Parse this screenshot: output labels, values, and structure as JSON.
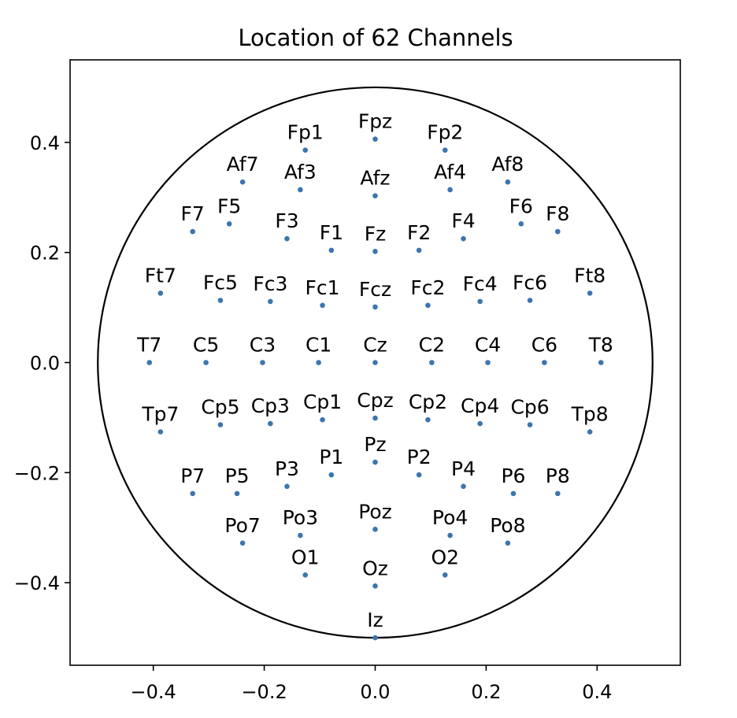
{
  "chart_data": {
    "type": "scatter",
    "title": "Location of 62 Channels",
    "xlim": [
      -0.55,
      0.55
    ],
    "ylim": [
      -0.55,
      0.55
    ],
    "xticks": [
      -0.4,
      -0.2,
      0.0,
      0.2,
      0.4
    ],
    "yticks": [
      -0.4,
      -0.2,
      0.0,
      0.2,
      0.4
    ],
    "xtick_labels": [
      "−0.4",
      "−0.2",
      "0.0",
      "0.2",
      "0.4"
    ],
    "ytick_labels": [
      "−0.4",
      "−0.2",
      "0.0",
      "0.2",
      "0.4"
    ],
    "grid": false,
    "head_circle": {
      "center": [
        0,
        0
      ],
      "radius": 0.5
    },
    "marker_color": "#3b75af",
    "points": [
      {
        "label": "Fp1",
        "x": -0.126,
        "y": 0.386
      },
      {
        "label": "Fpz",
        "x": 0.0,
        "y": 0.406
      },
      {
        "label": "Fp2",
        "x": 0.126,
        "y": 0.386
      },
      {
        "label": "Af7",
        "x": -0.239,
        "y": 0.328
      },
      {
        "label": "Af3",
        "x": -0.135,
        "y": 0.314
      },
      {
        "label": "Afz",
        "x": 0.0,
        "y": 0.303
      },
      {
        "label": "Af4",
        "x": 0.135,
        "y": 0.314
      },
      {
        "label": "Af8",
        "x": 0.239,
        "y": 0.328
      },
      {
        "label": "F7",
        "x": -0.329,
        "y": 0.238
      },
      {
        "label": "F5",
        "x": -0.263,
        "y": 0.252
      },
      {
        "label": "F3",
        "x": -0.159,
        "y": 0.225
      },
      {
        "label": "F1",
        "x": -0.079,
        "y": 0.204
      },
      {
        "label": "Fz",
        "x": 0.0,
        "y": 0.202
      },
      {
        "label": "F2",
        "x": 0.079,
        "y": 0.204
      },
      {
        "label": "F4",
        "x": 0.159,
        "y": 0.225
      },
      {
        "label": "F6",
        "x": 0.263,
        "y": 0.252
      },
      {
        "label": "F8",
        "x": 0.329,
        "y": 0.238
      },
      {
        "label": "Ft7",
        "x": -0.387,
        "y": 0.126
      },
      {
        "label": "Fc5",
        "x": -0.279,
        "y": 0.113
      },
      {
        "label": "Fc3",
        "x": -0.189,
        "y": 0.111
      },
      {
        "label": "Fc1",
        "x": -0.095,
        "y": 0.104
      },
      {
        "label": "Fcz",
        "x": 0.0,
        "y": 0.101
      },
      {
        "label": "Fc2",
        "x": 0.095,
        "y": 0.104
      },
      {
        "label": "Fc4",
        "x": 0.189,
        "y": 0.111
      },
      {
        "label": "Fc6",
        "x": 0.279,
        "y": 0.113
      },
      {
        "label": "Ft8",
        "x": 0.387,
        "y": 0.126
      },
      {
        "label": "T7",
        "x": -0.407,
        "y": 0.0
      },
      {
        "label": "C5",
        "x": -0.305,
        "y": 0.0
      },
      {
        "label": "C3",
        "x": -0.203,
        "y": 0.0
      },
      {
        "label": "C1",
        "x": -0.102,
        "y": 0.0
      },
      {
        "label": "Cz",
        "x": 0.0,
        "y": 0.0
      },
      {
        "label": "C2",
        "x": 0.102,
        "y": 0.0
      },
      {
        "label": "C4",
        "x": 0.203,
        "y": 0.0
      },
      {
        "label": "C6",
        "x": 0.305,
        "y": 0.0
      },
      {
        "label": "T8",
        "x": 0.407,
        "y": 0.0
      },
      {
        "label": "Tp7",
        "x": -0.387,
        "y": -0.126
      },
      {
        "label": "Cp5",
        "x": -0.279,
        "y": -0.113
      },
      {
        "label": "Cp3",
        "x": -0.189,
        "y": -0.111
      },
      {
        "label": "Cp1",
        "x": -0.095,
        "y": -0.104
      },
      {
        "label": "Cpz",
        "x": 0.0,
        "y": -0.101
      },
      {
        "label": "Cp2",
        "x": 0.095,
        "y": -0.104
      },
      {
        "label": "Cp4",
        "x": 0.189,
        "y": -0.111
      },
      {
        "label": "Cp6",
        "x": 0.279,
        "y": -0.113
      },
      {
        "label": "Tp8",
        "x": 0.387,
        "y": -0.126
      },
      {
        "label": "P7",
        "x": -0.329,
        "y": -0.238
      },
      {
        "label": "P5",
        "x": -0.249,
        "y": -0.238
      },
      {
        "label": "P3",
        "x": -0.159,
        "y": -0.225
      },
      {
        "label": "P1",
        "x": -0.079,
        "y": -0.204
      },
      {
        "label": "Pz",
        "x": 0.0,
        "y": -0.181
      },
      {
        "label": "P2",
        "x": 0.079,
        "y": -0.204
      },
      {
        "label": "P4",
        "x": 0.159,
        "y": -0.225
      },
      {
        "label": "P6",
        "x": 0.249,
        "y": -0.238
      },
      {
        "label": "P8",
        "x": 0.329,
        "y": -0.238
      },
      {
        "label": "Po7",
        "x": -0.239,
        "y": -0.328
      },
      {
        "label": "Po3",
        "x": -0.135,
        "y": -0.314
      },
      {
        "label": "Poz",
        "x": 0.0,
        "y": -0.303
      },
      {
        "label": "Po4",
        "x": 0.135,
        "y": -0.314
      },
      {
        "label": "Po8",
        "x": 0.239,
        "y": -0.328
      },
      {
        "label": "O1",
        "x": -0.126,
        "y": -0.386
      },
      {
        "label": "Oz",
        "x": 0.0,
        "y": -0.406
      },
      {
        "label": "O2",
        "x": 0.126,
        "y": -0.386
      },
      {
        "label": "Iz",
        "x": 0.0,
        "y": -0.5
      }
    ]
  }
}
